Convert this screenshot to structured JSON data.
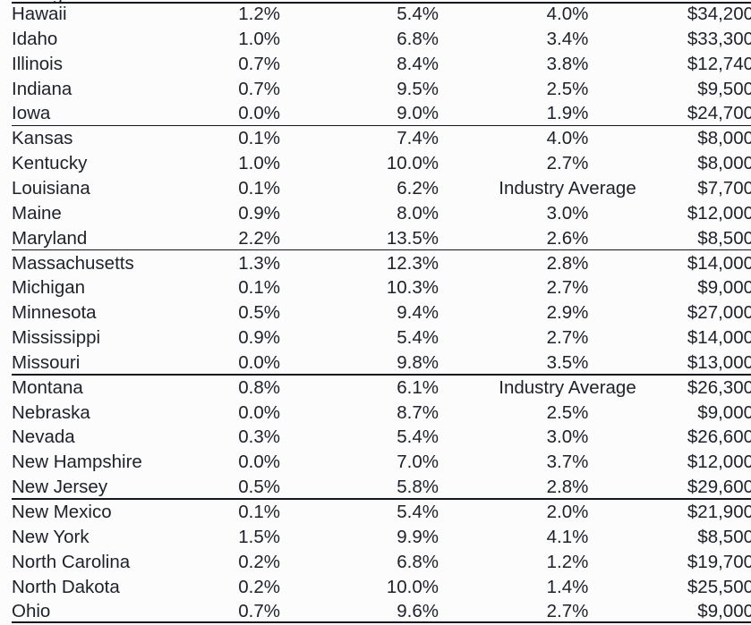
{
  "page": {
    "background": "#fcfcfc",
    "text_color": "#1d2129",
    "rule_color": "#14181e"
  },
  "table": {
    "clipped_row_above": {
      "state": "Georgia"
    },
    "groups": [
      {
        "rows": [
          {
            "state": "Hawaii",
            "values": [
              "1.2%",
              "5.4%",
              "4.0%",
              "$34,200"
            ]
          },
          {
            "state": "Idaho",
            "values": [
              "1.0%",
              "6.8%",
              "3.4%",
              "$33,300"
            ]
          },
          {
            "state": "Illinois",
            "values": [
              "0.7%",
              "8.4%",
              "3.8%",
              "$12,740"
            ]
          },
          {
            "state": "Indiana",
            "values": [
              "0.7%",
              "9.5%",
              "2.5%",
              "$9,500"
            ]
          },
          {
            "state": "Iowa",
            "values": [
              "0.0%",
              "9.0%",
              "1.9%",
              "$24,700"
            ]
          }
        ]
      },
      {
        "rows": [
          {
            "state": "Kansas",
            "values": [
              "0.1%",
              "7.4%",
              "4.0%",
              "$8,000"
            ]
          },
          {
            "state": "Kentucky",
            "values": [
              "1.0%",
              "10.0%",
              "2.7%",
              "$8,000"
            ]
          },
          {
            "state": "Louisiana",
            "values": [
              "0.1%",
              "6.2%",
              "Industry Average",
              "$7,700"
            ]
          },
          {
            "state": "Maine",
            "values": [
              "0.9%",
              "8.0%",
              "3.0%",
              "$12,000"
            ]
          },
          {
            "state": "Maryland",
            "values": [
              "2.2%",
              "13.5%",
              "2.6%",
              "$8,500"
            ]
          }
        ]
      },
      {
        "rows": [
          {
            "state": "Massachusetts",
            "values": [
              "1.3%",
              "12.3%",
              "2.8%",
              "$14,000"
            ]
          },
          {
            "state": "Michigan",
            "values": [
              "0.1%",
              "10.3%",
              "2.7%",
              "$9,000"
            ]
          },
          {
            "state": "Minnesota",
            "values": [
              "0.5%",
              "9.4%",
              "2.9%",
              "$27,000"
            ]
          },
          {
            "state": "Mississippi",
            "values": [
              "0.9%",
              "5.4%",
              "2.7%",
              "$14,000"
            ]
          },
          {
            "state": "Missouri",
            "values": [
              "0.0%",
              "9.8%",
              "3.5%",
              "$13,000"
            ]
          }
        ]
      },
      {
        "rows": [
          {
            "state": "Montana",
            "values": [
              "0.8%",
              "6.1%",
              "Industry Average",
              "$26,300"
            ]
          },
          {
            "state": "Nebraska",
            "values": [
              "0.0%",
              "8.7%",
              "2.5%",
              "$9,000"
            ]
          },
          {
            "state": "Nevada",
            "values": [
              "0.3%",
              "5.4%",
              "3.0%",
              "$26,600"
            ]
          },
          {
            "state": "New Hampshire",
            "values": [
              "0.0%",
              "7.0%",
              "3.7%",
              "$12,000"
            ]
          },
          {
            "state": "New Jersey",
            "values": [
              "0.5%",
              "5.8%",
              "2.8%",
              "$29,600"
            ]
          }
        ]
      },
      {
        "rows": [
          {
            "state": "New Mexico",
            "values": [
              "0.1%",
              "5.4%",
              "2.0%",
              "$21,900"
            ]
          },
          {
            "state": "New York",
            "values": [
              "1.5%",
              "9.9%",
              "4.1%",
              "$8,500"
            ]
          },
          {
            "state": "North Carolina",
            "values": [
              "0.2%",
              "6.8%",
              "1.2%",
              "$19,700"
            ]
          },
          {
            "state": "North Dakota",
            "values": [
              "0.2%",
              "10.0%",
              "1.4%",
              "$25,500"
            ]
          },
          {
            "state": "Ohio",
            "values": [
              "0.7%",
              "9.6%",
              "2.7%",
              "$9,000"
            ]
          }
        ]
      }
    ]
  }
}
